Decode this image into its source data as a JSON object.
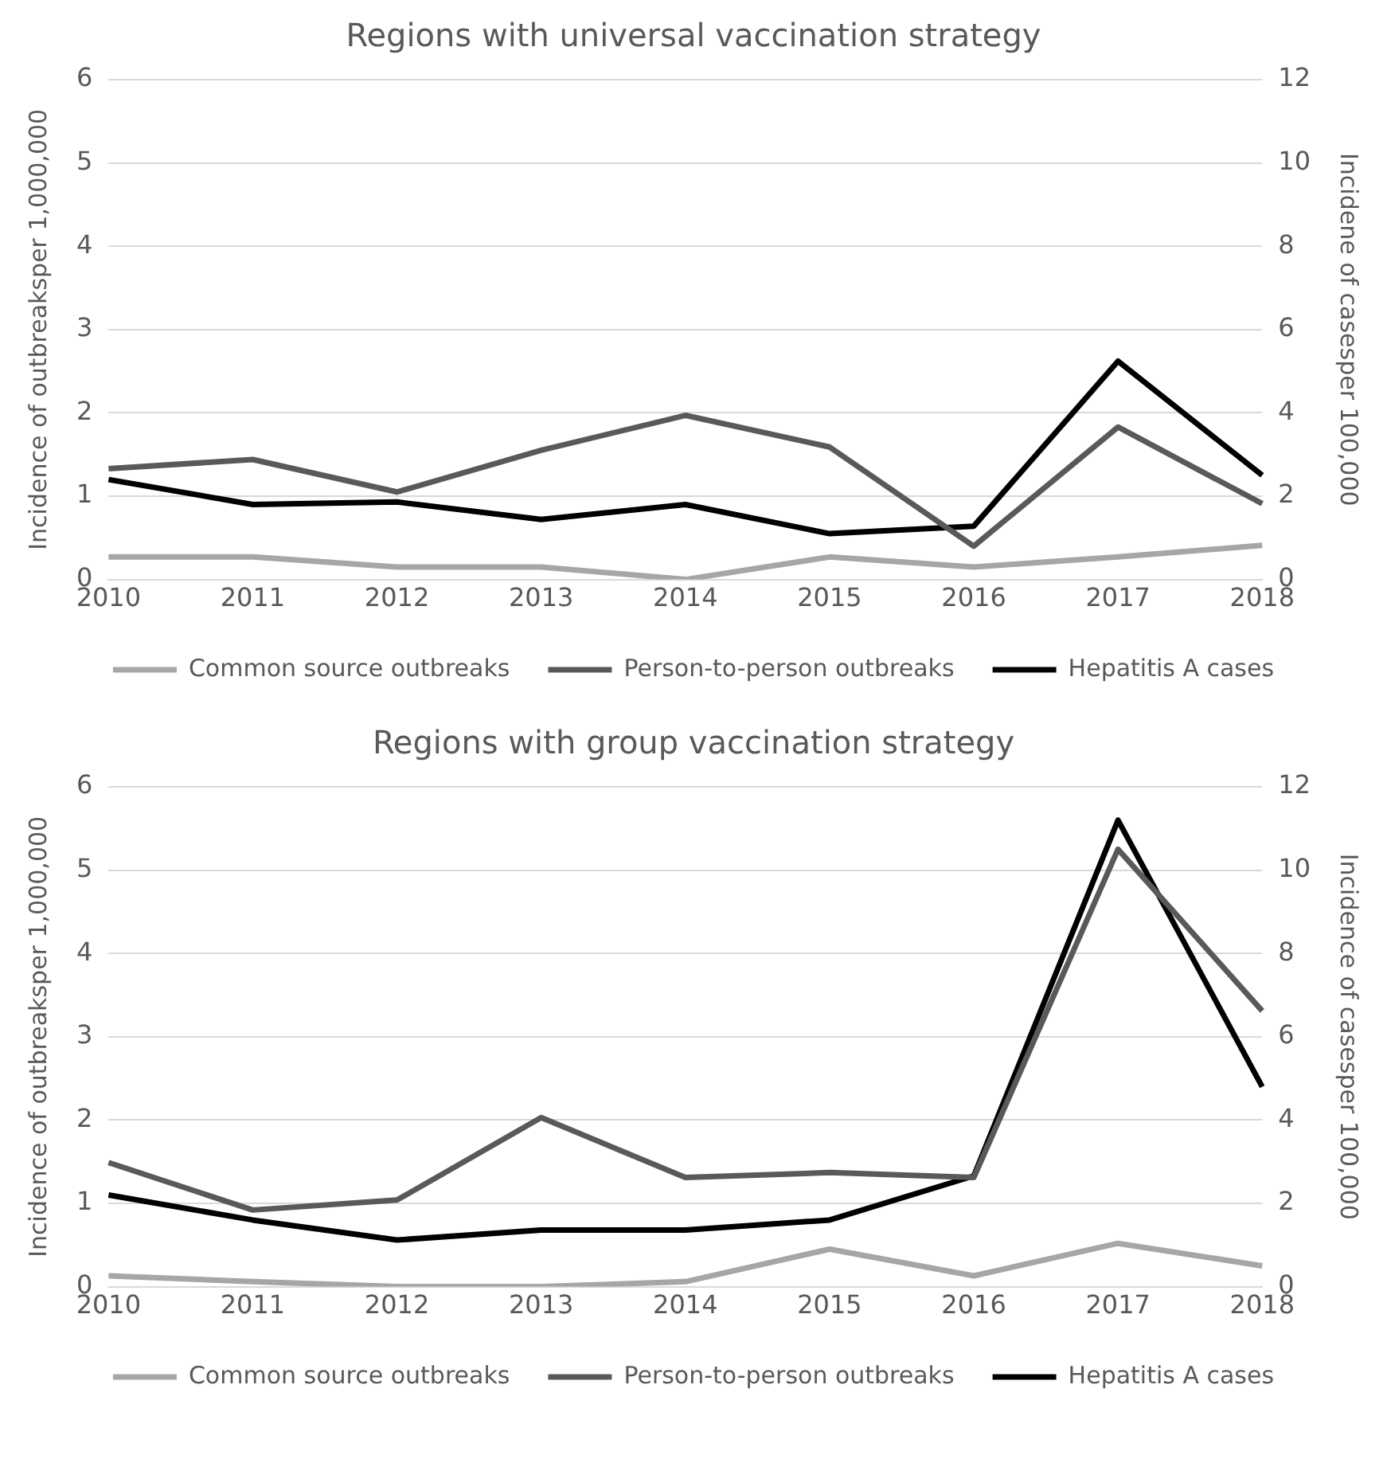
{
  "chart_data": [
    {
      "type": "line",
      "title": "Regions with universal vaccination strategy",
      "ylabel": "Incidence of outbreaksper 1,000,000",
      "y2label": "Incidene of casesper 100,000",
      "categories": [
        "2010",
        "2011",
        "2012",
        "2013",
        "2014",
        "2015",
        "2016",
        "2017",
        "2018"
      ],
      "ylim": [
        0,
        6
      ],
      "yticks": [
        0,
        1,
        2,
        3,
        4,
        5,
        6
      ],
      "y2lim": [
        0,
        12
      ],
      "y2ticks": [
        0,
        2,
        4,
        6,
        8,
        10,
        12
      ],
      "grid": "y",
      "legend": "bottom",
      "marker": "none",
      "series": [
        {
          "name": "Common source outbreaks",
          "color": "#a6a6a6",
          "values": [
            0.27,
            0.27,
            0.15,
            0.15,
            0,
            0.27,
            0.15,
            0.27,
            0.41
          ]
        },
        {
          "name": "Person-to-person outbreaks",
          "color": "#595959",
          "values": [
            1.33,
            1.44,
            1.05,
            1.55,
            1.97,
            1.59,
            0.4,
            1.83,
            0.91
          ]
        },
        {
          "name": "Hepatitis A cases",
          "color": "#000000",
          "axis": "y2",
          "values": [
            2.4,
            1.8,
            1.86,
            1.44,
            1.8,
            1.1,
            1.28,
            5.24,
            2.5
          ]
        }
      ]
    },
    {
      "type": "line",
      "title": "Regions with group vaccination strategy",
      "ylabel": "Incidence of outbreaksper 1,000,000",
      "y2label": "Incidence of casesper 100,000",
      "categories": [
        "2010",
        "2011",
        "2012",
        "2013",
        "2014",
        "2015",
        "2016",
        "2017",
        "2018"
      ],
      "ylim": [
        0,
        6
      ],
      "yticks": [
        0,
        1,
        2,
        3,
        4,
        5,
        6
      ],
      "y2lim": [
        0,
        12
      ],
      "y2ticks": [
        0,
        2,
        4,
        6,
        8,
        10,
        12
      ],
      "grid": "y",
      "legend": "bottom",
      "marker": "none",
      "series": [
        {
          "name": "Common source outbreaks",
          "color": "#a6a6a6",
          "values": [
            0.13,
            0.06,
            0,
            0,
            0.06,
            0.45,
            0.13,
            0.52,
            0.25
          ]
        },
        {
          "name": "Person-to-person outbreaks",
          "color": "#595959",
          "values": [
            1.49,
            0.92,
            1.04,
            2.03,
            1.31,
            1.37,
            1.31,
            5.25,
            3.31
          ]
        },
        {
          "name": "Hepatitis A cases",
          "color": "#000000",
          "axis": "y2",
          "values": [
            2.2,
            1.6,
            1.12,
            1.36,
            1.36,
            1.6,
            2.66,
            11.2,
            4.8
          ]
        }
      ]
    }
  ]
}
